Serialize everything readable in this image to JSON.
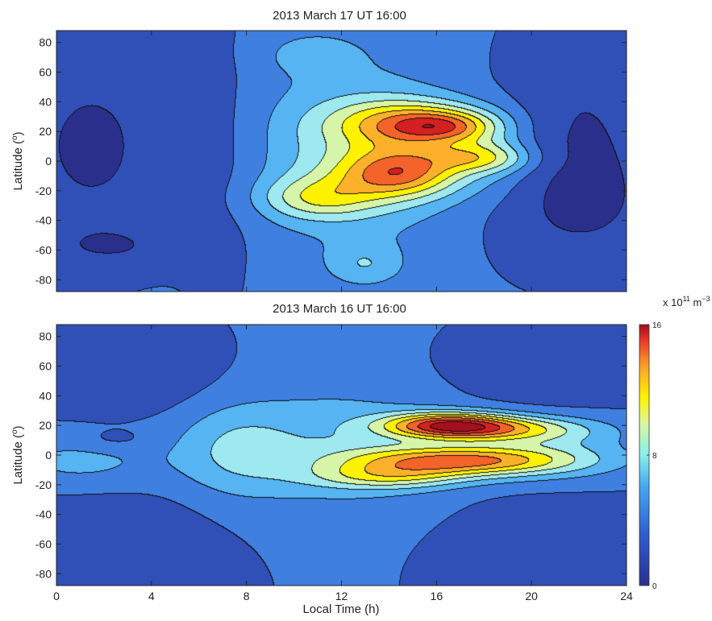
{
  "colors": {
    "colormap": [
      "#2b2f8c",
      "#3050b8",
      "#3f7fe0",
      "#56b4f2",
      "#9ee8f0",
      "#d6f5a8",
      "#fff200",
      "#fdb12a",
      "#f4632a",
      "#d42020",
      "#a50f1e"
    ],
    "contour_line": "#111111"
  },
  "colorbar": {
    "unit_prefix": "x 10",
    "unit_exp": "11",
    "unit_m": " m",
    "unit_exp2": "−3",
    "ticks": [
      {
        "value": 16,
        "label": "16"
      },
      {
        "value": 8,
        "label": "8"
      },
      {
        "value": 0,
        "label": "0"
      }
    ],
    "range": [
      0,
      16
    ]
  },
  "chart_data": [
    {
      "type": "heatmap",
      "title": "2013 March 17 UT 16:00",
      "xlabel": "",
      "ylabel": "Latitude (°)",
      "ylabel_parts": {
        "text": "Latitude (",
        "sup": "o",
        "close": ")"
      },
      "xlim": [
        0,
        24
      ],
      "ylim": [
        -88,
        88
      ],
      "yticks": [
        80,
        60,
        40,
        20,
        0,
        -20,
        -40,
        -60,
        -80
      ],
      "ytick_labels": [
        "80",
        "60",
        "40",
        "20",
        "0",
        "-20",
        "-40",
        "-60",
        "-80"
      ],
      "xticks": [
        0,
        4,
        8,
        12,
        16,
        20,
        24
      ],
      "xtick_labels": [],
      "contour_levels_approx": [
        1.5,
        3,
        4.5,
        6,
        7.5,
        9,
        10.5,
        12,
        13.5,
        15
      ],
      "background_value": 3.2,
      "features": [
        {
          "lt": 1.5,
          "lat": 10,
          "slt": 2.4,
          "slat": 48,
          "amp": -2.0
        },
        {
          "lt": 2.5,
          "lat": -58,
          "slt": 2.2,
          "slat": 10,
          "amp": -1.2
        },
        {
          "lt": 7.0,
          "lat": 0,
          "slt": 1.3,
          "slat": 60,
          "amp": -1.0
        },
        {
          "lt": 22.0,
          "lat": 25,
          "slt": 2.6,
          "slat": 45,
          "amp": -1.7
        },
        {
          "lt": 22.0,
          "lat": -35,
          "slt": 2.6,
          "slat": 28,
          "amp": -1.4
        },
        {
          "lt": 13.0,
          "lat": -70,
          "slt": 1.1,
          "slat": 10,
          "amp": 2.2
        },
        {
          "lt": 12.5,
          "lat": 5,
          "slt": 3.0,
          "slat": 42,
          "amp": 3.3
        },
        {
          "lt": 15.0,
          "lat": 25,
          "slt": 2.2,
          "slat": 11,
          "amp": 6.8
        },
        {
          "lt": 16.5,
          "lat": 23,
          "slt": 1.4,
          "slat": 7,
          "amp": 4.2
        },
        {
          "lt": 14.5,
          "lat": -8,
          "slt": 1.8,
          "slat": 12,
          "amp": 7.5
        },
        {
          "lt": 17.8,
          "lat": 2,
          "slt": 1.5,
          "slat": 7,
          "amp": 4.5
        },
        {
          "lt": 11.0,
          "lat": -25,
          "slt": 1.7,
          "slat": 10,
          "amp": 4.0
        },
        {
          "lt": 18.5,
          "lat": 5,
          "slt": 1.3,
          "slat": 20,
          "amp": 1.5
        },
        {
          "lt": 10.8,
          "lat": 72,
          "slt": 1.3,
          "slat": 9,
          "amp": 1.8
        }
      ]
    },
    {
      "type": "heatmap",
      "title": "2013 March 16 UT 16:00",
      "xlabel": "Local Time (h)",
      "ylabel": "Latitude (°)",
      "ylabel_parts": {
        "text": "Latitude (",
        "sup": "o",
        "close": ")"
      },
      "xlim": [
        0,
        24
      ],
      "ylim": [
        -88,
        88
      ],
      "yticks": [
        80,
        60,
        40,
        20,
        0,
        -20,
        -40,
        -60,
        -80
      ],
      "ytick_labels": [
        "80",
        "60",
        "40",
        "20",
        "0",
        "-20",
        "-40",
        "-60",
        "-80"
      ],
      "xticks": [
        0,
        4,
        8,
        12,
        16,
        20,
        24
      ],
      "xtick_labels": [
        "0",
        "4",
        "8",
        "12",
        "16",
        "20",
        "24"
      ],
      "contour_levels_approx": [
        1.5,
        3,
        4.5,
        6,
        7.5,
        9,
        10.5,
        12,
        13.5,
        15
      ],
      "background_value": 3.0,
      "features": [
        {
          "lt": 2.5,
          "lat": 50,
          "slt": 2.8,
          "slat": 16,
          "amp": -1.4
        },
        {
          "lt": 2.0,
          "lat": -52,
          "slt": 3.0,
          "slat": 20,
          "amp": -1.3
        },
        {
          "lt": 21.0,
          "lat": 55,
          "slt": 2.8,
          "slat": 14,
          "amp": -1.3
        },
        {
          "lt": 21.0,
          "lat": -55,
          "slt": 2.8,
          "slat": 18,
          "amp": -1.3
        },
        {
          "lt": 2.5,
          "lat": 10,
          "slt": 1.1,
          "slat": 5,
          "amp": -1.0
        },
        {
          "lt": 1.0,
          "lat": -5,
          "slt": 2.5,
          "slat": 14,
          "amp": 1.9
        },
        {
          "lt": 7.5,
          "lat": 3,
          "slt": 1.8,
          "slat": 22,
          "amp": 2.6
        },
        {
          "lt": 12.0,
          "lat": 5,
          "slt": 3.2,
          "slat": 30,
          "amp": 2.6
        },
        {
          "lt": 16.5,
          "lat": 20,
          "slt": 1.9,
          "slat": 6,
          "amp": 9.5
        },
        {
          "lt": 19.0,
          "lat": 17,
          "slt": 2.5,
          "slat": 6,
          "amp": 5.0
        },
        {
          "lt": 17.0,
          "lat": -4,
          "slt": 3.2,
          "slat": 7,
          "amp": 8.6
        },
        {
          "lt": 14.0,
          "lat": -15,
          "slt": 2.3,
          "slat": 6,
          "amp": 4.0
        },
        {
          "lt": 21.0,
          "lat": 2,
          "slt": 2.5,
          "slat": 14,
          "amp": 2.0
        }
      ]
    }
  ]
}
